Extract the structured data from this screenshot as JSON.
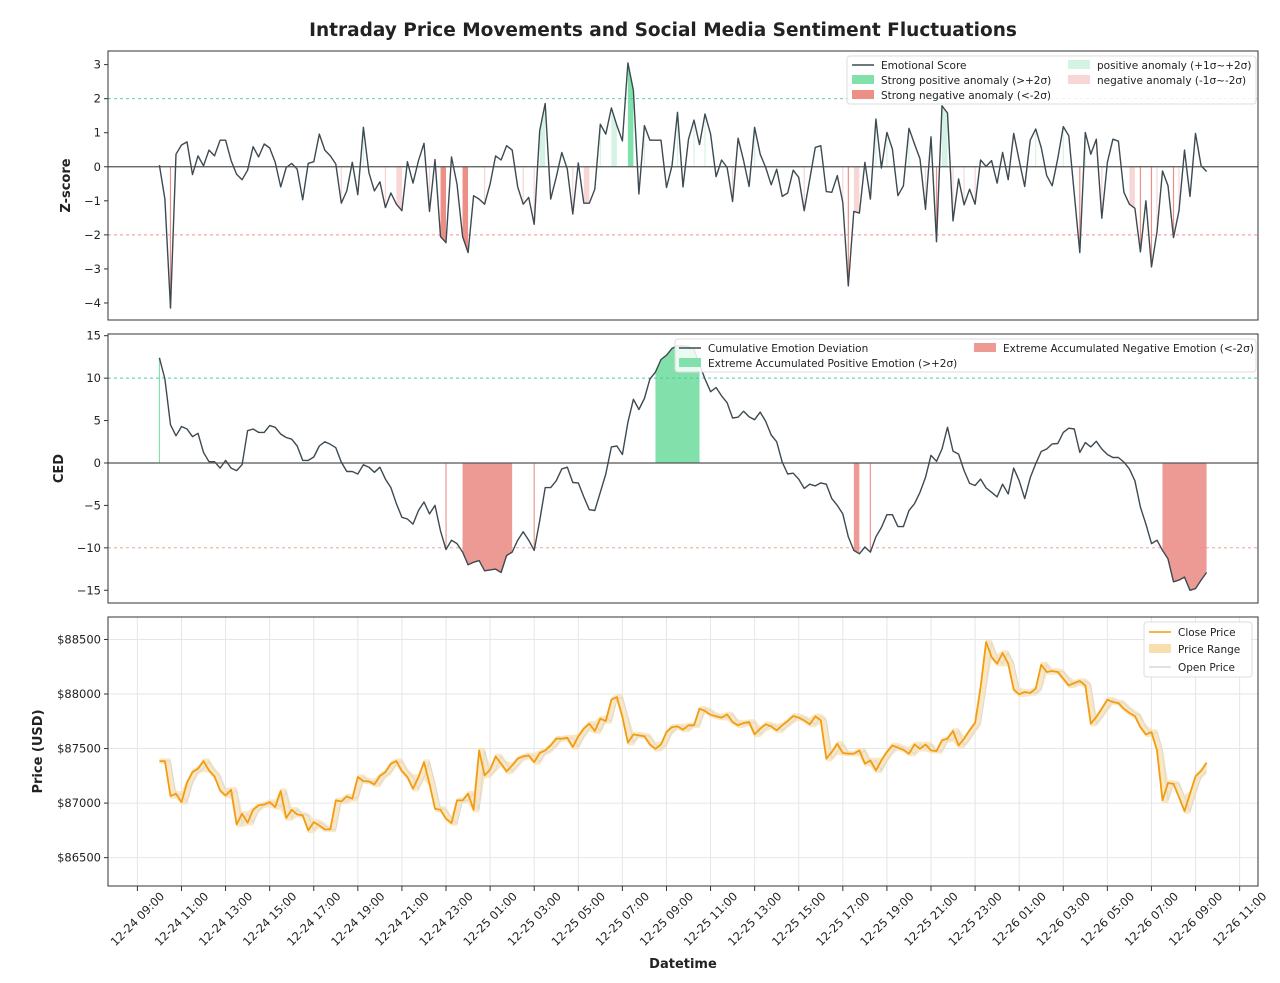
{
  "title": "Intraday Price Movements and Social Media Sentiment Fluctuations",
  "xlabel": "Datetime",
  "x_ticks": [
    "12-24 09:00",
    "12-24 11:00",
    "12-24 13:00",
    "12-24 15:00",
    "12-24 17:00",
    "12-24 19:00",
    "12-24 21:00",
    "12-24 23:00",
    "12-25 01:00",
    "12-25 03:00",
    "12-25 05:00",
    "12-25 07:00",
    "12-25 09:00",
    "12-25 11:00",
    "12-25 13:00",
    "12-25 15:00",
    "12-25 17:00",
    "12-25 19:00",
    "12-25 21:00",
    "12-25 23:00",
    "12-26 01:00",
    "12-26 03:00",
    "12-26 05:00",
    "12-26 07:00",
    "12-26 09:00",
    "12-26 11:00"
  ],
  "x_start": "12-24 10:00",
  "interval_minutes": 15,
  "xlim": [
    "12-24 07:40",
    "12-26 11:50"
  ],
  "chart_data": [
    {
      "type": "line",
      "ylabel": "Z-score",
      "ylim": [
        -4.5,
        3.4
      ],
      "yticks": [
        "3",
        "2",
        "1",
        "0",
        "−1",
        "−2",
        "−3",
        "−4"
      ],
      "ytick_values": [
        3,
        2,
        1,
        0,
        -1,
        -2,
        -3,
        -4
      ],
      "thresholds": {
        "upper": 2,
        "lower": -2,
        "upper_color": "#48c9b0",
        "lower_color": "#f1948a"
      },
      "line_color": "#3d4a52",
      "fill_colors": {
        "strong_positive": "#82e0aa",
        "positive": "#d4f3e4",
        "strong_negative": "#ec8f86",
        "negative": "#f9d6d6"
      },
      "legend": {
        "placement": "top-right",
        "entries": [
          "Emotional Score",
          "Strong positive anomaly (>+2σ)",
          "Strong negative anomaly (<-2σ)",
          "positive anomaly (+1σ~+2σ)",
          "negative anomaly (-1σ~-2σ)"
        ]
      },
      "series": [
        {
          "name": "Emotional Score",
          "values": [
            0.05,
            -0.95,
            -4.15,
            0.37,
            0.64,
            0.73,
            -0.23,
            0.32,
            0.03,
            0.49,
            0.32,
            0.78,
            0.78,
            0.18,
            -0.22,
            -0.38,
            -0.1,
            0.59,
            0.29,
            0.67,
            0.55,
            0.13,
            -0.59,
            -0.02,
            0.1,
            -0.07,
            -0.97,
            0.1,
            0.15,
            0.96,
            0.49,
            0.32,
            0.08,
            -1.07,
            -0.71,
            0.13,
            -0.82,
            1.16,
            -0.17,
            -0.71,
            -0.44,
            -1.2,
            -0.77,
            -1.1,
            -1.29,
            0.15,
            -0.48,
            0.18,
            0.69,
            -1.31,
            0.21,
            -2.05,
            -2.23,
            0.29,
            -0.51,
            -2.05,
            -2.52,
            -0.85,
            -0.95,
            -1.1,
            -0.51,
            0.32,
            0.2,
            0.62,
            0.49,
            -0.59,
            -1.1,
            -0.9,
            -1.69,
            1.06,
            1.86,
            -0.95,
            -0.31,
            0.42,
            -0.07,
            -1.39,
            0.11,
            -1.07,
            -1.07,
            -0.66,
            1.25,
            0.96,
            1.73,
            1.21,
            0.76,
            3.05,
            2.24,
            -0.8,
            1.21,
            0.78,
            0.78,
            0.78,
            -0.61,
            0.03,
            1.6,
            -0.59,
            0.81,
            1.37,
            0.65,
            1.55,
            0.96,
            -0.29,
            0.2,
            -0.02,
            -1.02,
            0.84,
            0.18,
            -0.58,
            1.16,
            0.37,
            -0.02,
            -0.53,
            -0.07,
            -0.87,
            -0.77,
            -0.1,
            -0.31,
            -1.29,
            -0.36,
            0.57,
            0.62,
            -0.73,
            -0.75,
            -0.26,
            -1.05,
            -3.5,
            -1.31,
            -1.36,
            0.13,
            -0.95,
            1.4,
            -0.04,
            1.01,
            0.52,
            -0.85,
            -0.56,
            1.13,
            0.67,
            0.23,
            -1.25,
            0.88,
            -2.2,
            1.79,
            1.58,
            -1.59,
            -0.36,
            -1.12,
            -0.66,
            -1.1,
            0.2,
            0.01,
            0.18,
            -0.48,
            0.42,
            -0.38,
            0.98,
            0.18,
            -0.58,
            0.78,
            1.11,
            0.57,
            -0.26,
            -0.56,
            0.25,
            1.18,
            0.91,
            -0.8,
            -2.52,
            1.01,
            0.37,
            0.81,
            -1.51,
            0.13,
            0.81,
            0.75,
            -0.75,
            -1.1,
            -1.22,
            -2.5,
            -1.0,
            -2.94,
            -1.91,
            -0.12,
            -0.56,
            -2.08,
            -1.29,
            0.49,
            -0.87,
            0.98,
            0.03,
            -0.14
          ]
        }
      ]
    },
    {
      "type": "area",
      "ylabel": "CED",
      "ylim": [
        -16.5,
        15.2
      ],
      "yticks": [
        "15",
        "10",
        "5",
        "0",
        "−5",
        "−10",
        "−15"
      ],
      "ytick_values": [
        15,
        10,
        5,
        0,
        -5,
        -10,
        -15
      ],
      "thresholds": {
        "upper": 10,
        "lower": -10,
        "upper_color": "#48c9b0",
        "lower_color": "#f1948a"
      },
      "line_color": "#3d4a52",
      "fill_colors": {
        "positive": "#82e0aa",
        "negative": "#ec9a93"
      },
      "legend": {
        "placement": "top-right",
        "entries": [
          "Cumulative Emotion Deviation",
          "Extreme Accumulated Positive Emotion (>+2σ)",
          "Extreme Accumulated Negative Emotion (<-2σ)"
        ]
      },
      "series": [
        {
          "name": "Cumulative Emotion Deviation",
          "values": [
            12.4,
            9.9,
            4.5,
            3.2,
            4.3,
            4.0,
            3.1,
            3.5,
            1.25,
            0.15,
            0.15,
            -0.6,
            0.3,
            -0.6,
            -0.9,
            -0.2,
            3.8,
            4.0,
            3.6,
            3.6,
            4.4,
            4.2,
            3.4,
            3.0,
            2.8,
            2.0,
            0.3,
            0.3,
            0.7,
            2.0,
            2.5,
            2.2,
            1.8,
            0.1,
            -1.0,
            -1.0,
            -1.3,
            -0.2,
            -0.5,
            -1.1,
            -0.5,
            -1.9,
            -2.9,
            -4.8,
            -6.4,
            -6.6,
            -7.2,
            -5.6,
            -4.6,
            -6.0,
            -5.0,
            -8.0,
            -10.2,
            -9.1,
            -9.5,
            -10.5,
            -12.0,
            -11.7,
            -11.5,
            -12.7,
            -12.6,
            -12.5,
            -12.9,
            -10.9,
            -10.5,
            -9.1,
            -8.1,
            -9.1,
            -10.3,
            -6.8,
            -2.9,
            -2.9,
            -2.1,
            -0.7,
            -0.5,
            -2.3,
            -2.35,
            -4.0,
            -5.5,
            -5.6,
            -3.45,
            -1.3,
            1.9,
            2.0,
            1.0,
            4.8,
            7.5,
            6.3,
            7.6,
            9.9,
            10.7,
            12.2,
            12.7,
            13.5,
            13.8,
            13.8,
            13.7,
            13.4,
            11.6,
            9.9,
            8.4,
            8.9,
            7.9,
            7.1,
            5.3,
            5.4,
            6.1,
            5.45,
            5.1,
            6.0,
            4.9,
            3.3,
            2.5,
            0.1,
            -1.3,
            -1.2,
            -1.9,
            -3.0,
            -2.5,
            -2.7,
            -2.35,
            -2.5,
            -4.2,
            -5.0,
            -6.0,
            -8.7,
            -10.3,
            -10.7,
            -9.9,
            -10.5,
            -8.7,
            -7.6,
            -6.1,
            -6.1,
            -7.5,
            -7.5,
            -5.6,
            -4.8,
            -3.45,
            -1.7,
            0.9,
            0.2,
            1.65,
            4.2,
            1.4,
            1.05,
            -0.9,
            -2.4,
            -2.65,
            -1.9,
            -2.95,
            -3.45,
            -4.0,
            -2.5,
            -3.65,
            -0.6,
            -2.1,
            -4.2,
            -1.75,
            -0.1,
            1.35,
            1.65,
            2.25,
            2.3,
            3.6,
            4.1,
            4.0,
            1.25,
            2.4,
            1.9,
            2.55,
            1.65,
            1.0,
            0.65,
            0.65,
            0.1,
            -0.7,
            -2.1,
            -5.2,
            -7.2,
            -9.5,
            -9.1,
            -10.3,
            -11.3,
            -14.0,
            -13.8,
            -13.45,
            -15.0,
            -14.8,
            -13.8,
            -12.9
          ]
        }
      ]
    },
    {
      "type": "line",
      "ylabel": "Price (USD)",
      "ylim": [
        86240,
        88706
      ],
      "yticks": [
        "$88500",
        "$88000",
        "$87500",
        "$87000",
        "$86500"
      ],
      "ytick_values": [
        88500,
        88000,
        87500,
        87000,
        86500
      ],
      "grid": true,
      "line_color": "#f39c12",
      "range_color": "#f8dfb0",
      "open_color": "#d9d9d9",
      "legend": {
        "placement": "top-right",
        "entries": [
          "Close Price",
          "Price Range",
          "Open Price"
        ]
      },
      "series": [
        {
          "name": "Close Price",
          "values": [
            87385,
            87385,
            87064,
            87086,
            87009,
            87187,
            87284,
            87315,
            87385,
            87300,
            87245,
            87116,
            87070,
            87122,
            86805,
            86902,
            86820,
            86939,
            86979,
            86988,
            87009,
            86963,
            87110,
            86863,
            86939,
            86896,
            86887,
            86750,
            86826,
            86795,
            86759,
            86759,
            87025,
            87015,
            87061,
            87040,
            87239,
            87202,
            87199,
            87171,
            87248,
            87284,
            87361,
            87385,
            87294,
            87239,
            87132,
            87239,
            87376,
            87177,
            86948,
            86939,
            86857,
            86817,
            87025,
            87025,
            87086,
            86939,
            87483,
            87254,
            87306,
            87428,
            87361,
            87291,
            87346,
            87407,
            87428,
            87437,
            87376,
            87459,
            87483,
            87529,
            87590,
            87590,
            87599,
            87514,
            87612,
            87682,
            87728,
            87661,
            87774,
            87752,
            87948,
            87972,
            87789,
            87554,
            87630,
            87621,
            87612,
            87538,
            87498,
            87538,
            87651,
            87697,
            87703,
            87673,
            87713,
            87713,
            87865,
            87844,
            87810,
            87795,
            87783,
            87813,
            87743,
            87713,
            87734,
            87743,
            87630,
            87682,
            87722,
            87703,
            87667,
            87713,
            87752,
            87798,
            87783,
            87758,
            87722,
            87795,
            87758,
            87407,
            87468,
            87544,
            87459,
            87453,
            87453,
            87483,
            87361,
            87391,
            87300,
            87391,
            87468,
            87529,
            87508,
            87489,
            87453,
            87538,
            87498,
            87538,
            87483,
            87477,
            87575,
            87590,
            87661,
            87529,
            87590,
            87667,
            87734,
            88064,
            88477,
            88339,
            88278,
            88376,
            88278,
            88040,
            87997,
            88018,
            88009,
            88049,
            88269,
            88202,
            88211,
            88202,
            88140,
            88079,
            88101,
            88119,
            88079,
            87728,
            87789,
            87865,
            87948,
            87926,
            87917,
            87865,
            87826,
            87798,
            87697,
            87630,
            87651,
            87483,
            87025,
            87184,
            87177,
            87054,
            86927,
            87086,
            87245,
            87294,
            87370
          ]
        }
      ]
    }
  ]
}
